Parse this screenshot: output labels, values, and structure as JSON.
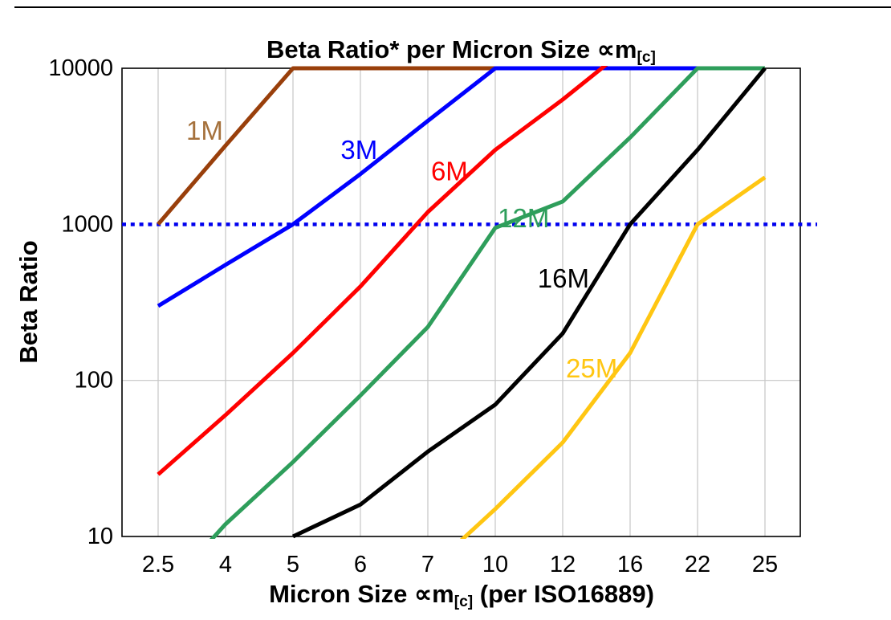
{
  "page": {
    "background": "#ffffff",
    "top_border_color": "#000000"
  },
  "chart_data": {
    "type": "line",
    "title": {
      "text": "Beta Ratio* per Micron Size ∝m",
      "sub": "[c]"
    },
    "y_axis": {
      "label": "Beta Ratio",
      "scale": "log",
      "range": [
        10,
        10000
      ],
      "ticks": [
        "10",
        "100",
        "1000",
        "10000"
      ]
    },
    "x_axis": {
      "label": "Micron Size ∝m",
      "label_sub": "[c]",
      "label_suffix": " (per ISO16889)",
      "categories": [
        "2.5",
        "4",
        "5",
        "6",
        "7",
        "10",
        "12",
        "16",
        "22",
        "25"
      ]
    },
    "reference_line": {
      "value": 1000,
      "color": "#0000EE",
      "style": "dotted",
      "overflows_right_edge": true
    },
    "gridlines": {
      "color": "#C6C6C6",
      "horizontal_values": [
        100
      ],
      "vertical": "every-category"
    },
    "frame_color": "#000000",
    "legend_position": "labels-on-lines",
    "series": [
      {
        "name": "1M",
        "color": "#993F0B",
        "label_color": "#A5713C",
        "label_at": {
          "x": 0.69,
          "value": 4000
        },
        "points": [
          [
            "2.5",
            1000
          ],
          [
            "4",
            3200
          ],
          [
            "5",
            10000
          ],
          [
            "10",
            10000
          ]
        ]
      },
      {
        "name": "3M",
        "color": "#0000FF",
        "label_color": "#0000FF",
        "label_at": {
          "x": 2.98,
          "value": 3000
        },
        "points": [
          [
            "2.5",
            300
          ],
          [
            "4",
            550
          ],
          [
            "5",
            1000
          ],
          [
            "6",
            2100
          ],
          [
            "7",
            4600
          ],
          [
            "10",
            10000
          ],
          [
            "22",
            10000
          ]
        ]
      },
      {
        "name": "6M",
        "color": "#FF0000",
        "label_color": "#FF0000",
        "label_at": {
          "x": 4.32,
          "value": 2200
        },
        "points": [
          [
            "2.5",
            25
          ],
          [
            "4",
            60
          ],
          [
            "5",
            150
          ],
          [
            "6",
            400
          ],
          [
            "7",
            1200
          ],
          [
            "10",
            3000
          ],
          [
            "12",
            6300
          ],
          [
            "16",
            14000
          ]
        ]
      },
      {
        "name": "12M",
        "color": "#2E9E5B",
        "label_color": "#2E9E5B",
        "label_at": {
          "x": 5.42,
          "value": 1100
        },
        "points": [
          [
            "2.5",
            4
          ],
          [
            "4",
            12
          ],
          [
            "5",
            30
          ],
          [
            "6",
            80
          ],
          [
            "7",
            220
          ],
          [
            "10",
            950
          ],
          [
            "12",
            1400
          ],
          [
            "16",
            3600
          ],
          [
            "22",
            10000
          ],
          [
            "25",
            10000
          ]
        ]
      },
      {
        "name": "16M",
        "color": "#000000",
        "label_color": "#000000",
        "label_at": {
          "x": 6.01,
          "value": 450
        },
        "points": [
          [
            "5",
            10
          ],
          [
            "6",
            16
          ],
          [
            "7",
            35
          ],
          [
            "10",
            70
          ],
          [
            "12",
            200
          ],
          [
            "16",
            1000
          ],
          [
            "22",
            3000
          ],
          [
            "25",
            10000
          ]
        ]
      },
      {
        "name": "25M",
        "color": "#FFC612",
        "label_color": "#FFC612",
        "label_at": {
          "x": 6.43,
          "value": 120
        },
        "points": [
          [
            "7",
            6
          ],
          [
            "10",
            15
          ],
          [
            "12",
            40
          ],
          [
            "16",
            150
          ],
          [
            "22",
            1000
          ],
          [
            "25",
            2000
          ]
        ]
      }
    ]
  }
}
